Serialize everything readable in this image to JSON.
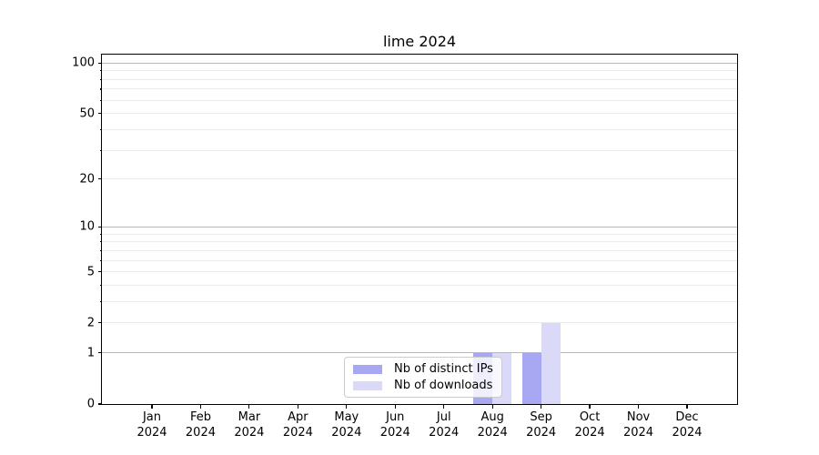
{
  "figure": {
    "background": "#ffffff"
  },
  "chart_data": {
    "type": "bar",
    "title": "lime 2024",
    "categories": [
      "Jan 2024",
      "Feb 2024",
      "Mar 2024",
      "Apr 2024",
      "May 2024",
      "Jun 2024",
      "Jul 2024",
      "Aug 2024",
      "Sep 2024",
      "Oct 2024",
      "Nov 2024",
      "Dec 2024"
    ],
    "series": [
      {
        "name": "Nb of distinct IPs",
        "color": "#a8a8f2",
        "values": [
          0,
          0,
          0,
          0,
          0,
          0,
          0,
          1,
          1,
          0,
          0,
          0
        ]
      },
      {
        "name": "Nb of downloads",
        "color": "#dadaf8",
        "values": [
          0,
          0,
          0,
          0,
          0,
          0,
          0,
          1,
          2,
          0,
          0,
          0
        ]
      }
    ],
    "y_scale": "log1p",
    "ylim": [
      0,
      113
    ],
    "y_tick_labels": [
      "0",
      "1",
      "2",
      "5",
      "10",
      "20",
      "50",
      "100"
    ],
    "y_tick_values": [
      0,
      1,
      2,
      5,
      10,
      20,
      50,
      100
    ],
    "y_grid_major": [
      1,
      10,
      100
    ],
    "y_grid_minor": [
      2,
      3,
      4,
      5,
      6,
      7,
      8,
      9,
      20,
      30,
      40,
      50,
      60,
      70,
      80,
      90
    ],
    "grid": "on",
    "legend_position": "inside bottom-center"
  },
  "colors": {
    "axis": "#000000",
    "grid_major": "#b9b9b9",
    "grid_minor": "#eaeaea",
    "text": "#000000",
    "legend_border": "#cccccc"
  }
}
